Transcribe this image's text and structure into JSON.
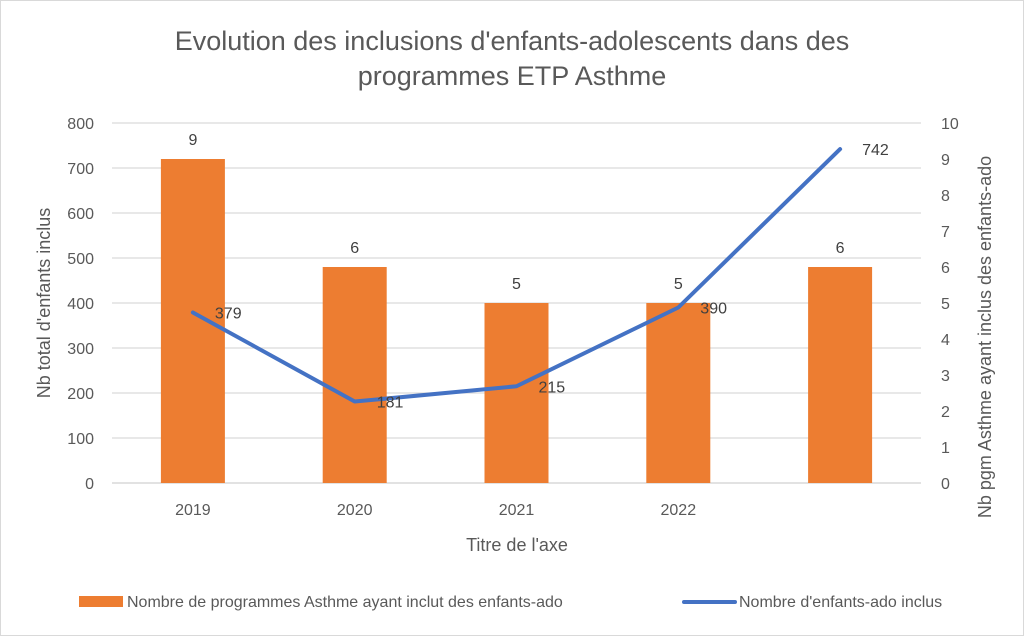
{
  "chart_data": {
    "type": "bar",
    "title_lines": [
      "Evolution des inclusions d'enfants-adolescents dans des",
      "programmes ETP Asthme"
    ],
    "categories": [
      "2019",
      "2020",
      "2021",
      "2022",
      ""
    ],
    "xlabel": "Titre de l'axe",
    "ylabel_left": "Nb total d'enfants inclus",
    "ylabel_right": "Nb pgm Asthme ayant inclus des enfants-ado",
    "ylim_left": [
      0,
      800
    ],
    "yticks_left": [
      0,
      100,
      200,
      300,
      400,
      500,
      600,
      700,
      800
    ],
    "ylim_right": [
      0,
      10
    ],
    "yticks_right": [
      0,
      1,
      2,
      3,
      4,
      5,
      6,
      7,
      8,
      9,
      10
    ],
    "grid": true,
    "legend_position": "bottom",
    "series": [
      {
        "name": "Nombre de programmes Asthme ayant inclut des enfants-ado",
        "type": "bar",
        "axis": "right",
        "color": "#ED7D31",
        "values": [
          9,
          6,
          5,
          5,
          6
        ],
        "labels": [
          "9",
          "6",
          "5",
          "5",
          "6"
        ]
      },
      {
        "name": "Nombre d'enfants-ado inclus",
        "type": "line",
        "axis": "left",
        "color": "#4472C4",
        "values": [
          379,
          181,
          215,
          390,
          742
        ],
        "labels": [
          "379",
          "181",
          "215",
          "390",
          "742"
        ]
      }
    ]
  }
}
